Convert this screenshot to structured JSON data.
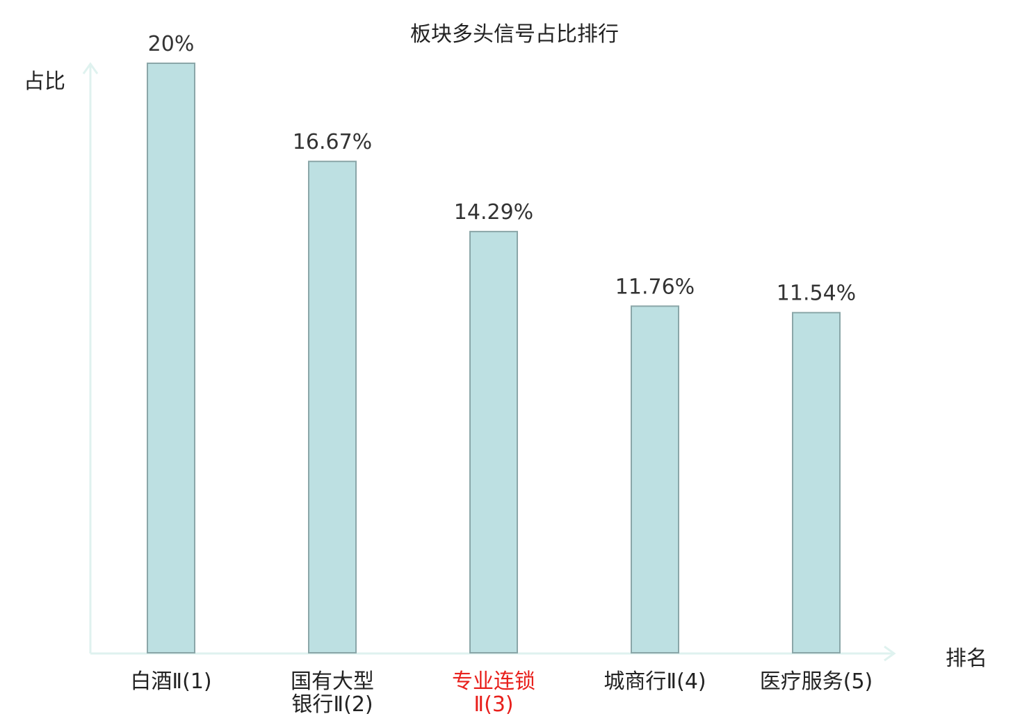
{
  "chart_data": {
    "type": "bar",
    "title": "板块多头信号占比排行",
    "ylabel": "占比",
    "xlabel": "排名",
    "categories": [
      "白酒Ⅱ(1)",
      "国有大型\n银行Ⅱ(2)",
      "专业连锁\nⅡ(3)",
      "城商行Ⅱ(4)",
      "医疗服务(5)"
    ],
    "values": [
      20,
      16.67,
      14.29,
      11.76,
      11.54
    ],
    "value_labels": [
      "20%",
      "16.67%",
      "14.29%",
      "11.76%",
      "11.54%"
    ],
    "highlight_index": 2,
    "ylim": [
      0,
      20
    ],
    "grid": false,
    "colors": {
      "bar_fill": "#bde0e2",
      "bar_stroke": "#8aa6a8",
      "axis": "#dff2ef",
      "highlight_text": "#e8201c",
      "text": "#222222"
    }
  }
}
